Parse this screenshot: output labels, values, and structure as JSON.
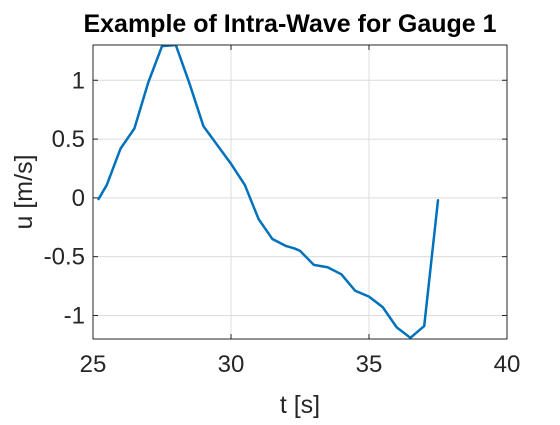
{
  "chart_data": {
    "type": "line",
    "title": "Example of Intra-Wave for Gauge 1",
    "xlabel": "t [s]",
    "ylabel": "u [m/s]",
    "xlim": [
      25,
      40
    ],
    "ylim": [
      -1.2,
      1.3
    ],
    "xticks": [
      25,
      30,
      35,
      40
    ],
    "xtick_labels": [
      "25",
      "30",
      "35",
      "40"
    ],
    "yticks": [
      -1,
      -0.5,
      0,
      0.5,
      1
    ],
    "ytick_labels": [
      "-1",
      "-0.5",
      "0",
      "0.5",
      "1"
    ],
    "grid": true,
    "series": [
      {
        "color": "#0072bd",
        "x": [
          25.2,
          25.5,
          26.0,
          26.5,
          27.0,
          27.5,
          28.0,
          28.5,
          29.0,
          29.5,
          30.0,
          30.5,
          31.0,
          31.5,
          32.0,
          32.3,
          32.5,
          33.0,
          33.5,
          34.0,
          34.5,
          35.0,
          35.5,
          36.0,
          36.5,
          37.0,
          37.5
        ],
        "y": [
          -0.01,
          0.11,
          0.42,
          0.59,
          0.98,
          1.29,
          1.3,
          0.97,
          0.61,
          0.45,
          0.29,
          0.11,
          -0.18,
          -0.35,
          -0.41,
          -0.43,
          -0.45,
          -0.57,
          -0.59,
          -0.65,
          -0.79,
          -0.84,
          -0.93,
          -1.1,
          -1.19,
          -1.09,
          -0.02
        ]
      }
    ]
  }
}
